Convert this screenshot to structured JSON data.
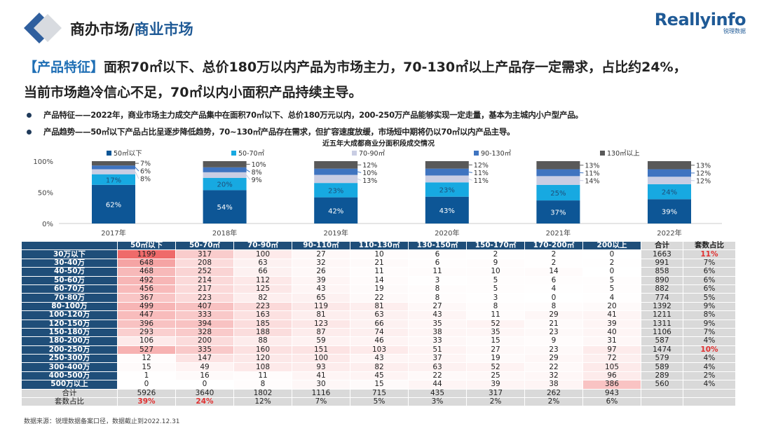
{
  "header": {
    "title_main": "商办市场/",
    "title_highlight": "商业市场",
    "brand_name": "Reallyinfo",
    "brand_sub": "锐理数据"
  },
  "headline": {
    "tag": "【产品特征】",
    "line1": "面积70㎡以下、总价180万以内产品为市场主力，70-130㎡以上产品存一定需求，占比约24%，",
    "line2": "当前市场趋冷信心不足，70㎡以内小面积产品持续主导。"
  },
  "bullets": [
    "产品特征——2022年，商业市场主力成交产品集中在面积70㎡以下、总价180万元以内，200-250万产品能够实现一定走量，基本为主城内小户型产品。",
    "产品趋势——50㎡以下产品占比呈逐步降低趋势，70~130㎡产品存在需求，但扩容速度放缓，市场短中期将仍以70㎡以内产品主导。"
  ],
  "chart_data": {
    "type": "bar",
    "stacked": true,
    "title": "近五年大成都商业分面积段成交情况",
    "categories": [
      "2017年",
      "2018年",
      "2019年",
      "2020年",
      "2021年",
      "2022年"
    ],
    "yticks": [
      "0%",
      "50%",
      "100%"
    ],
    "ylim": [
      0,
      100
    ],
    "legend_position": "top",
    "series": [
      {
        "name": "50㎡以下",
        "color": "#0d5696",
        "label_color": "#ffffff",
        "values": [
          62,
          54,
          42,
          43,
          37,
          39
        ]
      },
      {
        "name": "50-70㎡",
        "color": "#17a9e1",
        "label_color": "#1f4e79",
        "values": [
          17,
          20,
          23,
          23,
          25,
          24
        ]
      },
      {
        "name": "70-90㎡",
        "color": "#c9cde3",
        "label_color": "#333333",
        "values": [
          8,
          9,
          13,
          11,
          14,
          12
        ]
      },
      {
        "name": "90-130㎡",
        "color": "#3f74c0",
        "label_color": "#ffffff",
        "values": [
          6,
          8,
          10,
          11,
          11,
          12
        ]
      },
      {
        "name": "130㎡以上",
        "color": "#595959",
        "label_color": "#ffffff",
        "values": [
          7,
          10,
          12,
          12,
          13,
          13
        ]
      }
    ]
  },
  "table": {
    "columns": [
      "50㎡以下",
      "50-70㎡",
      "70-90㎡",
      "90-110㎡",
      "110-130㎡",
      "130-150㎡",
      "150-170㎡",
      "170-200㎡",
      "200以上"
    ],
    "total_header": "合计",
    "share_header": "套数占比",
    "rows": [
      {
        "label": "30万以下",
        "values": [
          1199,
          317,
          100,
          27,
          10,
          6,
          2,
          2,
          0
        ],
        "total": "1663",
        "share": "11%",
        "highlight": true
      },
      {
        "label": "30-40万",
        "values": [
          648,
          208,
          63,
          32,
          21,
          6,
          9,
          2,
          2
        ],
        "total": "991",
        "share": "7%"
      },
      {
        "label": "40-50万",
        "values": [
          468,
          252,
          66,
          26,
          11,
          11,
          10,
          14,
          0
        ],
        "total": "858",
        "share": "6%"
      },
      {
        "label": "50-60万",
        "values": [
          492,
          214,
          112,
          39,
          14,
          3,
          5,
          6,
          5
        ],
        "total": "890",
        "share": "6%"
      },
      {
        "label": "60-70万",
        "values": [
          456,
          217,
          125,
          43,
          19,
          8,
          5,
          4,
          5
        ],
        "total": "882",
        "share": "6%"
      },
      {
        "label": "70-80万",
        "values": [
          367,
          223,
          82,
          65,
          22,
          8,
          3,
          0,
          4
        ],
        "total": "774",
        "share": "5%"
      },
      {
        "label": "80-100万",
        "values": [
          499,
          407,
          223,
          119,
          81,
          27,
          8,
          8,
          20
        ],
        "total": "1392",
        "share": "9%"
      },
      {
        "label": "100-120万",
        "values": [
          447,
          333,
          163,
          81,
          63,
          43,
          11,
          29,
          41
        ],
        "total": "1211",
        "share": "8%"
      },
      {
        "label": "120-150万",
        "values": [
          396,
          394,
          185,
          123,
          66,
          35,
          52,
          21,
          39
        ],
        "total": "1311",
        "share": "9%"
      },
      {
        "label": "150-180万",
        "values": [
          293,
          328,
          188,
          87,
          74,
          38,
          35,
          23,
          40
        ],
        "total": "1106",
        "share": "7%"
      },
      {
        "label": "180-200万",
        "values": [
          106,
          200,
          88,
          59,
          46,
          33,
          15,
          9,
          31
        ],
        "total": "587",
        "share": "4%"
      },
      {
        "label": "200-250万",
        "values": [
          527,
          335,
          160,
          151,
          103,
          51,
          27,
          23,
          97
        ],
        "total": "1474",
        "share": "10%",
        "highlight": true
      },
      {
        "label": "250-300万",
        "values": [
          12,
          147,
          120,
          100,
          43,
          37,
          19,
          29,
          72
        ],
        "total": "579",
        "share": "4%"
      },
      {
        "label": "300-400万",
        "values": [
          15,
          49,
          108,
          93,
          82,
          63,
          52,
          22,
          105
        ],
        "total": "589",
        "share": "4%"
      },
      {
        "label": "400-500万",
        "values": [
          1,
          16,
          11,
          41,
          45,
          22,
          25,
          32,
          96
        ],
        "total": "289",
        "share": "2%"
      },
      {
        "label": "500万以上",
        "values": [
          0,
          0,
          8,
          30,
          15,
          44,
          39,
          38,
          386
        ],
        "total": "560",
        "share": "4%"
      }
    ],
    "sum_label": "合计",
    "sum_values": [
      "5926",
      "3640",
      "1802",
      "1116",
      "715",
      "435",
      "317",
      "262",
      "943"
    ],
    "share_label": "套数占比",
    "share_values": [
      "39%",
      "24%",
      "12%",
      "7%",
      "5%",
      "3%",
      "2%",
      "2%",
      "6%"
    ],
    "share_highlight": [
      true,
      true,
      false,
      false,
      false,
      false,
      false,
      false,
      false
    ]
  },
  "source": "数据来源：锐理数据备案口径，数据截止到2022.12.31"
}
